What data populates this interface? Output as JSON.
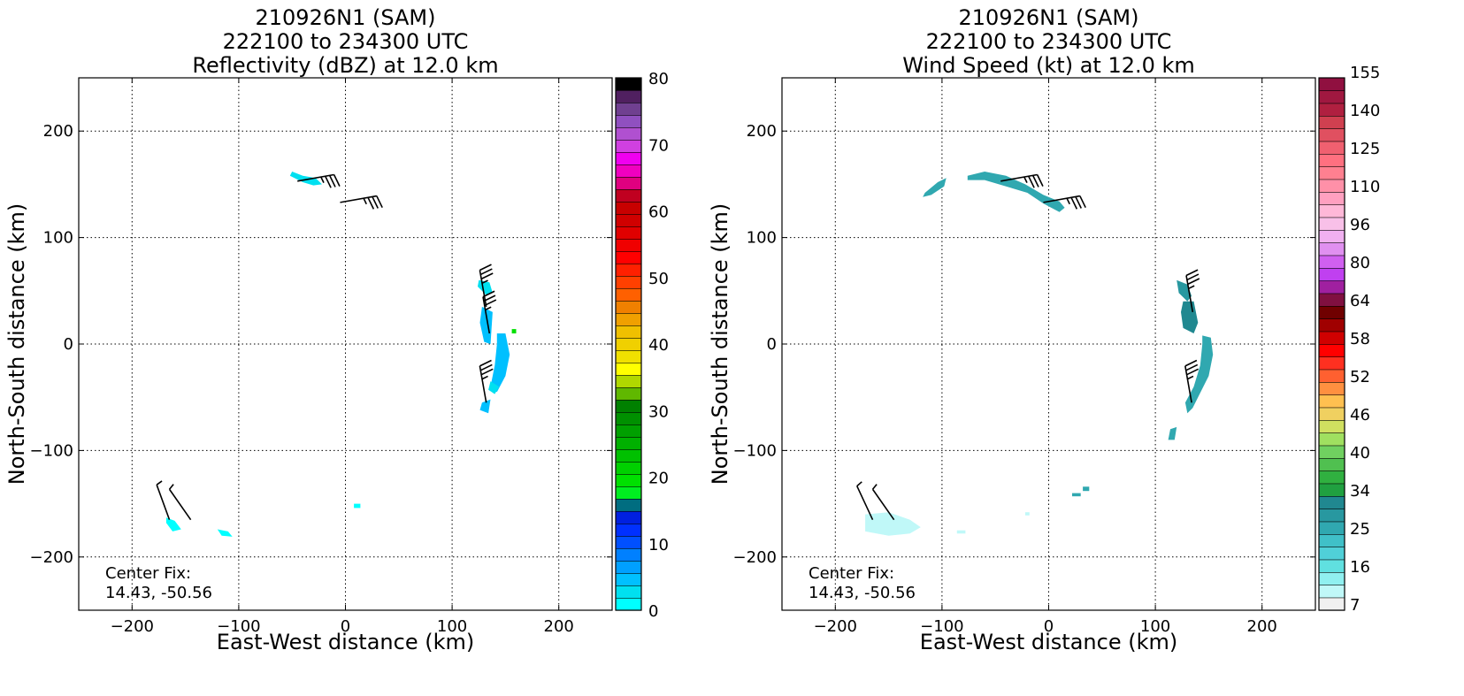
{
  "chart_data": [
    {
      "type": "heatmap",
      "title_lines": [
        "210926N1 (SAM)",
        "222100 to 234300 UTC",
        "Reflectivity (dBZ) at 12.0 km"
      ],
      "xlabel": "East-West distance (km)",
      "ylabel": "North-South distance (km)",
      "xlim": [
        -250,
        250
      ],
      "ylim": [
        -250,
        250
      ],
      "xticks": [
        -200,
        -100,
        0,
        100,
        200
      ],
      "yticks": [
        -200,
        -100,
        0,
        100,
        200
      ],
      "grid": true,
      "annotation_lines": [
        "Center Fix:",
        "14.43, -50.56"
      ],
      "colorbar": {
        "vmin": 0,
        "vmax": 80,
        "tick_values": [
          0,
          10,
          20,
          30,
          40,
          50,
          60,
          70,
          80
        ],
        "colors": [
          "#00ffff",
          "#00e0f0",
          "#00c0ff",
          "#00a0ff",
          "#0080ff",
          "#0050ff",
          "#0030ff",
          "#0020e0",
          "#006d80",
          "#00ee20",
          "#00e000",
          "#00d000",
          "#00c000",
          "#00b000",
          "#00a000",
          "#009000",
          "#008000",
          "#60b800",
          "#b0d800",
          "#ffff00",
          "#f0e000",
          "#f0d000",
          "#f0c000",
          "#f0a000",
          "#f08000",
          "#ff6000",
          "#ff4000",
          "#ff2000",
          "#ff0000",
          "#f00000",
          "#e00000",
          "#d00000",
          "#c80000",
          "#c00020",
          "#e00080",
          "#f000c0",
          "#f000f0",
          "#d040e0",
          "#b050d0",
          "#9050c0",
          "#704090",
          "#502060",
          "#000000"
        ]
      },
      "data_regions": [
        {
          "polygon": [
            [
              -50,
              162
            ],
            [
              -40,
              158
            ],
            [
              -28,
              156
            ],
            [
              -22,
              150
            ],
            [
              -30,
              149
            ],
            [
              -40,
              152
            ],
            [
              -52,
              158
            ]
          ],
          "value": 2
        },
        {
          "polygon": [
            [
              125,
              60
            ],
            [
              135,
              58
            ],
            [
              138,
              48
            ],
            [
              132,
              46
            ],
            [
              124,
              54
            ]
          ],
          "value": 3
        },
        {
          "polygon": [
            [
              128,
              35
            ],
            [
              138,
              30
            ],
            [
              136,
              0
            ],
            [
              130,
              2
            ],
            [
              126,
              20
            ]
          ],
          "value": 4
        },
        {
          "polygon": [
            [
              142,
              10
            ],
            [
              150,
              10
            ],
            [
              154,
              -10
            ],
            [
              150,
              -30
            ],
            [
              142,
              -45
            ],
            [
              136,
              -40
            ],
            [
              140,
              -20
            ],
            [
              142,
              0
            ]
          ],
          "value": 5
        },
        {
          "polygon": [
            [
              136,
              -35
            ],
            [
              144,
              -40
            ],
            [
              140,
              -47
            ],
            [
              134,
              -43
            ]
          ],
          "value": 3
        },
        {
          "polygon": [
            [
              128,
              -55
            ],
            [
              136,
              -52
            ],
            [
              134,
              -65
            ],
            [
              126,
              -62
            ]
          ],
          "value": 4
        },
        {
          "polygon": [
            [
              -168,
              -163
            ],
            [
              -160,
              -166
            ],
            [
              -154,
              -174
            ],
            [
              -162,
              -176
            ],
            [
              -168,
              -168
            ]
          ],
          "value": 1
        },
        {
          "polygon": [
            [
              -120,
              -174
            ],
            [
              -110,
              -176
            ],
            [
              -106,
              -181
            ],
            [
              -116,
              -180
            ]
          ],
          "value": 1
        },
        {
          "polygon": [
            [
              8,
              -150
            ],
            [
              14,
              -150
            ],
            [
              14,
              -154
            ],
            [
              8,
              -154
            ]
          ],
          "value": 1
        },
        {
          "polygon": [
            [
              156,
              14
            ],
            [
              160,
              14
            ],
            [
              160,
              10
            ],
            [
              156,
              10
            ]
          ],
          "value": 20
        }
      ],
      "wind_barbs": [
        {
          "x": -45,
          "y": 153,
          "from_deg": 80,
          "full": 3,
          "half": 1
        },
        {
          "x": -5,
          "y": 133,
          "from_deg": 80,
          "full": 3,
          "half": 1
        },
        {
          "x": 132,
          "y": 35,
          "from_deg": 350,
          "full": 3,
          "half": 1
        },
        {
          "x": 135,
          "y": 10,
          "from_deg": 350,
          "full": 3,
          "half": 1
        },
        {
          "x": 132,
          "y": -55,
          "from_deg": 350,
          "full": 3,
          "half": 1
        },
        {
          "x": -165,
          "y": -165,
          "from_deg": 340,
          "full": 0,
          "half": 1
        },
        {
          "x": -145,
          "y": -165,
          "from_deg": 325,
          "full": 0,
          "half": 1
        }
      ]
    },
    {
      "type": "heatmap",
      "title_lines": [
        "210926N1 (SAM)",
        "222100 to 234300 UTC",
        "Wind Speed (kt) at 12.0 km"
      ],
      "xlabel": "East-West distance (km)",
      "ylabel": "North-South distance (km)",
      "xlim": [
        -250,
        250
      ],
      "ylim": [
        -250,
        250
      ],
      "xticks": [
        -200,
        -100,
        0,
        100,
        200
      ],
      "yticks": [
        -200,
        -100,
        0,
        100,
        200
      ],
      "grid": true,
      "annotation_lines": [
        "Center Fix:",
        "14.43, -50.56"
      ],
      "colorbar": {
        "tick_labels": [
          "7",
          "16",
          "25",
          "34",
          "40",
          "46",
          "52",
          "58",
          "64",
          "80",
          "96",
          "110",
          "125",
          "140",
          "155"
        ],
        "colors": [
          "#f0f0f0",
          "#c0f8f8",
          "#90f0f0",
          "#60e0e0",
          "#50d0d8",
          "#40c0c8",
          "#30a8b0",
          "#2898a0",
          "#208890",
          "#20a040",
          "#30b040",
          "#50c050",
          "#70d060",
          "#a0e060",
          "#d0e060",
          "#f0d060",
          "#ffc050",
          "#ff9040",
          "#ff6030",
          "#ff3020",
          "#ff0000",
          "#d00000",
          "#a00000",
          "#700000",
          "#801040",
          "#a020a0",
          "#c040f0",
          "#d060f0",
          "#e090f0",
          "#f0b0f0",
          "#f8c0e8",
          "#ffb8d8",
          "#ffa0c0",
          "#ff90a8",
          "#ff8090",
          "#ff7080",
          "#f06070",
          "#e05060",
          "#d04050",
          "#b02040",
          "#a01840",
          "#901040"
        ]
      },
      "data_regions": [
        {
          "polygon": [
            [
              -116,
              142
            ],
            [
              -104,
              152
            ],
            [
              -96,
              156
            ],
            [
              -98,
              148
            ],
            [
              -110,
              140
            ],
            [
              -118,
              138
            ]
          ],
          "value": 26
        },
        {
          "polygon": [
            [
              -76,
              158
            ],
            [
              -60,
              162
            ],
            [
              -40,
              158
            ],
            [
              -22,
              150
            ],
            [
              -5,
              140
            ],
            [
              10,
              134
            ],
            [
              15,
              128
            ],
            [
              10,
              124
            ],
            [
              -5,
              132
            ],
            [
              -20,
              142
            ],
            [
              -40,
              148
            ],
            [
              -60,
              154
            ],
            [
              -76,
              154
            ]
          ],
          "value": 26
        },
        {
          "polygon": [
            [
              120,
              60
            ],
            [
              130,
              56
            ],
            [
              134,
              45
            ],
            [
              130,
              40
            ],
            [
              122,
              48
            ]
          ],
          "value": 30
        },
        {
          "polygon": [
            [
              126,
              40
            ],
            [
              136,
              40
            ],
            [
              140,
              20
            ],
            [
              136,
              10
            ],
            [
              126,
              15
            ],
            [
              124,
              30
            ]
          ],
          "value": 34
        },
        {
          "polygon": [
            [
              144,
              8
            ],
            [
              152,
              6
            ],
            [
              154,
              -10
            ],
            [
              150,
              -30
            ],
            [
              140,
              -50
            ],
            [
              135,
              -60
            ],
            [
              130,
              -65
            ],
            [
              128,
              -55
            ],
            [
              136,
              -40
            ],
            [
              142,
              -20
            ],
            [
              144,
              0
            ]
          ],
          "value": 25
        },
        {
          "polygon": [
            [
              114,
              -80
            ],
            [
              120,
              -78
            ],
            [
              118,
              -90
            ],
            [
              112,
              -90
            ]
          ],
          "value": 25
        },
        {
          "polygon": [
            [
              22,
              -140
            ],
            [
              30,
              -140
            ],
            [
              30,
              -143
            ],
            [
              22,
              -143
            ]
          ],
          "value": 25
        },
        {
          "polygon": [
            [
              32,
              -134
            ],
            [
              38,
              -134
            ],
            [
              38,
              -138
            ],
            [
              32,
              -138
            ]
          ],
          "value": 25
        },
        {
          "polygon": [
            [
              -172,
              -160
            ],
            [
              -150,
              -158
            ],
            [
              -130,
              -165
            ],
            [
              -120,
              -172
            ],
            [
              -130,
              -178
            ],
            [
              -150,
              -180
            ],
            [
              -172,
              -176
            ]
          ],
          "value": 7
        },
        {
          "polygon": [
            [
              -86,
              -175
            ],
            [
              -78,
              -175
            ],
            [
              -78,
              -178
            ],
            [
              -86,
              -178
            ]
          ],
          "value": 7
        },
        {
          "polygon": [
            [
              -22,
              -158
            ],
            [
              -18,
              -158
            ],
            [
              -18,
              -161
            ],
            [
              -22,
              -161
            ]
          ],
          "value": 7
        }
      ],
      "wind_barbs": [
        {
          "x": -45,
          "y": 153,
          "from_deg": 80,
          "full": 3,
          "half": 1
        },
        {
          "x": -5,
          "y": 133,
          "from_deg": 80,
          "full": 3,
          "half": 1
        },
        {
          "x": 135,
          "y": 30,
          "from_deg": 350,
          "full": 3,
          "half": 1
        },
        {
          "x": 134,
          "y": -55,
          "from_deg": 350,
          "full": 3,
          "half": 1
        },
        {
          "x": -165,
          "y": -165,
          "from_deg": 335,
          "full": 0,
          "half": 1
        },
        {
          "x": -145,
          "y": -165,
          "from_deg": 325,
          "full": 0,
          "half": 1
        }
      ]
    }
  ]
}
